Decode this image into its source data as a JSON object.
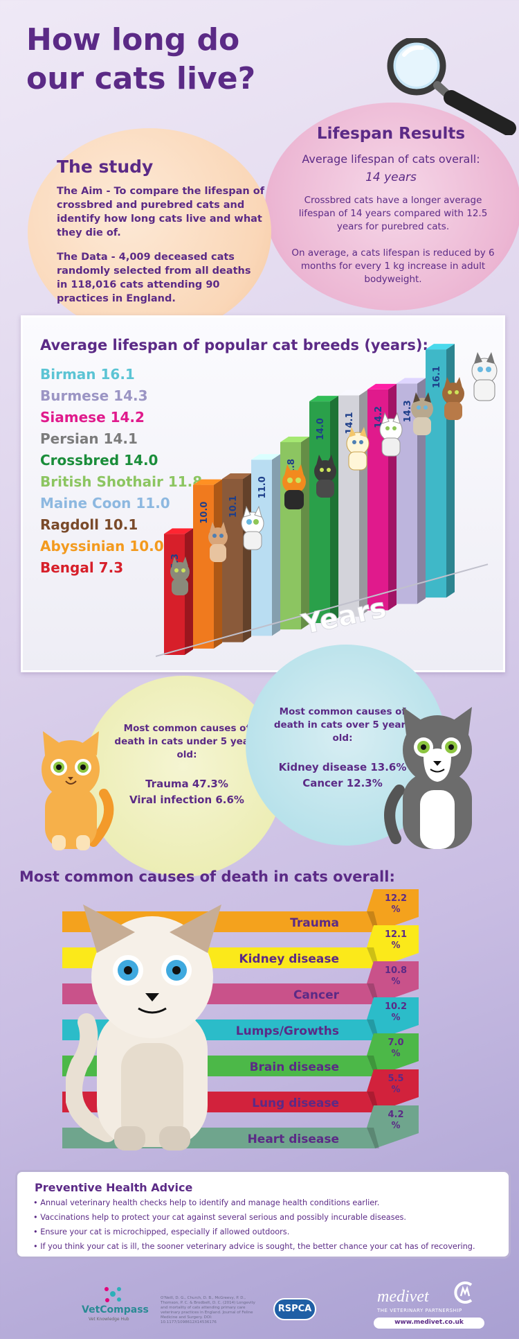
{
  "title": "How long do our cats live?",
  "study": {
    "heading": "The study",
    "aim": "The Aim - To compare the lifespan of crossbred and purebred cats and identify how long cats live and what they die of.",
    "data": "The Data - 4,009 deceased cats randomly selected from all deaths in 118,016 cats attending 90 practices in England."
  },
  "results": {
    "heading": "Lifespan Results",
    "avg_label": "Average lifespan of cats overall:",
    "avg_value": "14 years",
    "crossbred": "Crossbred cats have a longer average lifespan of 14 years compared with 12.5 years for purebred cats.",
    "weight": "On average, a cats lifespan is reduced by 6 months for every 1 kg increase in adult bodyweight."
  },
  "breeds": {
    "heading": "Average lifespan of popular cat breeds (years):",
    "list": [
      {
        "text": "Birman 16.1",
        "color": "#5bc4d4"
      },
      {
        "text": "Burmese 14.3",
        "color": "#9b95c4"
      },
      {
        "text": "Siamese 14.2",
        "color": "#e01a8c"
      },
      {
        "text": "Persian 14.1",
        "color": "#7b7b7b"
      },
      {
        "text": "Crossbred 14.0",
        "color": "#1a8d3a"
      },
      {
        "text": "British Shothair 11.8",
        "color": "#8cc561"
      },
      {
        "text": "Maine Coon 11.0",
        "color": "#8db8e0"
      },
      {
        "text": "Ragdoll 10.1",
        "color": "#7a4a2a"
      },
      {
        "text": "Abyssinian 10.0",
        "color": "#f39a1e"
      },
      {
        "text": "Bengal 7.3",
        "color": "#d71f2a"
      }
    ],
    "axis_word": "Years"
  },
  "chart_data": {
    "type": "bar",
    "categories": [
      "Bengal",
      "Abyssinian",
      "Ragdoll",
      "Maine Coon",
      "British Shothair",
      "Crossbred",
      "Persian",
      "Siamese",
      "Burmese",
      "Birman"
    ],
    "values": [
      7.3,
      10.0,
      10.1,
      11.0,
      11.8,
      14.0,
      14.1,
      14.2,
      14.3,
      16.1
    ],
    "labels": [
      "7.3",
      "10.0",
      "10.1",
      "11.0",
      "11.8",
      "14.0",
      "14.1",
      "14.2",
      "14.3",
      "16.1"
    ],
    "colors": [
      "#d71f2a",
      "#f07a1e",
      "#8a5a3a",
      "#b9ddf2",
      "#8cc561",
      "#2aa04a",
      "#d3d3da",
      "#e01a8c",
      "#bdb5dd",
      "#3fb8c8"
    ],
    "xlabel": "Years"
  },
  "under5": {
    "heading": "Most common causes of death in cats under 5 years old:",
    "line1": "Trauma  47.3%",
    "line2": "Viral infection  6.6%"
  },
  "over5": {
    "heading": "Most common causes of death in cats over 5 years old:",
    "line1": "Kidney disease  13.6%",
    "line2": "Cancer  12.3%"
  },
  "overall": {
    "heading": "Most common causes of death in cats overall:",
    "causes": [
      {
        "name": "Trauma",
        "pct": "12.2",
        "value": 12.2,
        "color": "#f4a21d"
      },
      {
        "name": "Kidney disease",
        "pct": "12.1",
        "value": 12.1,
        "color": "#fbe91a"
      },
      {
        "name": "Cancer",
        "pct": "10.8",
        "value": 10.8,
        "color": "#c9528a"
      },
      {
        "name": "Lumps/Growths",
        "pct": "10.2",
        "value": 10.2,
        "color": "#2bbcc9"
      },
      {
        "name": "Brain disease",
        "pct": "7.0",
        "value": 7.0,
        "color": "#4cb848"
      },
      {
        "name": "Lung disease",
        "pct": "5.5",
        "value": 5.5,
        "color": "#d2223c"
      },
      {
        "name": "Heart disease",
        "pct": "4.2",
        "value": 4.2,
        "color": "#6fa58d"
      }
    ],
    "pct_sign": "%"
  },
  "advice": {
    "heading": "Preventive Health Advice",
    "items": [
      "• Annual veterinary health checks help to identify and manage health conditions earlier.",
      "• Vaccinations help to protect your cat against several serious and possibly incurable diseases.",
      "• Ensure your cat is microchipped, especially if allowed outdoors.",
      "• If you think your cat is ill, the sooner veterinary advice is sought, the better chance your cat has of recovering."
    ]
  },
  "footer": {
    "vetcompass": "VetCompass",
    "vetcompass_sub": "Vet Knowledge Hub",
    "citation": "O'Neill, D. G., Church, D. B., McGreevy, P. D., Thomson, P. C. & Brodbelt, D. C. (2014) Longevity and mortality of cats attending primary care veterinary practices in England. Journal of Feline Medicine and Surgery. DOI: 10.1177/1098612X14536176",
    "rspca": "RSPCA",
    "medivet": "medivet",
    "medivet_sub": "THE VETERINARY PARTNERSHIP",
    "medivet_url": "www.medivet.co.uk"
  }
}
